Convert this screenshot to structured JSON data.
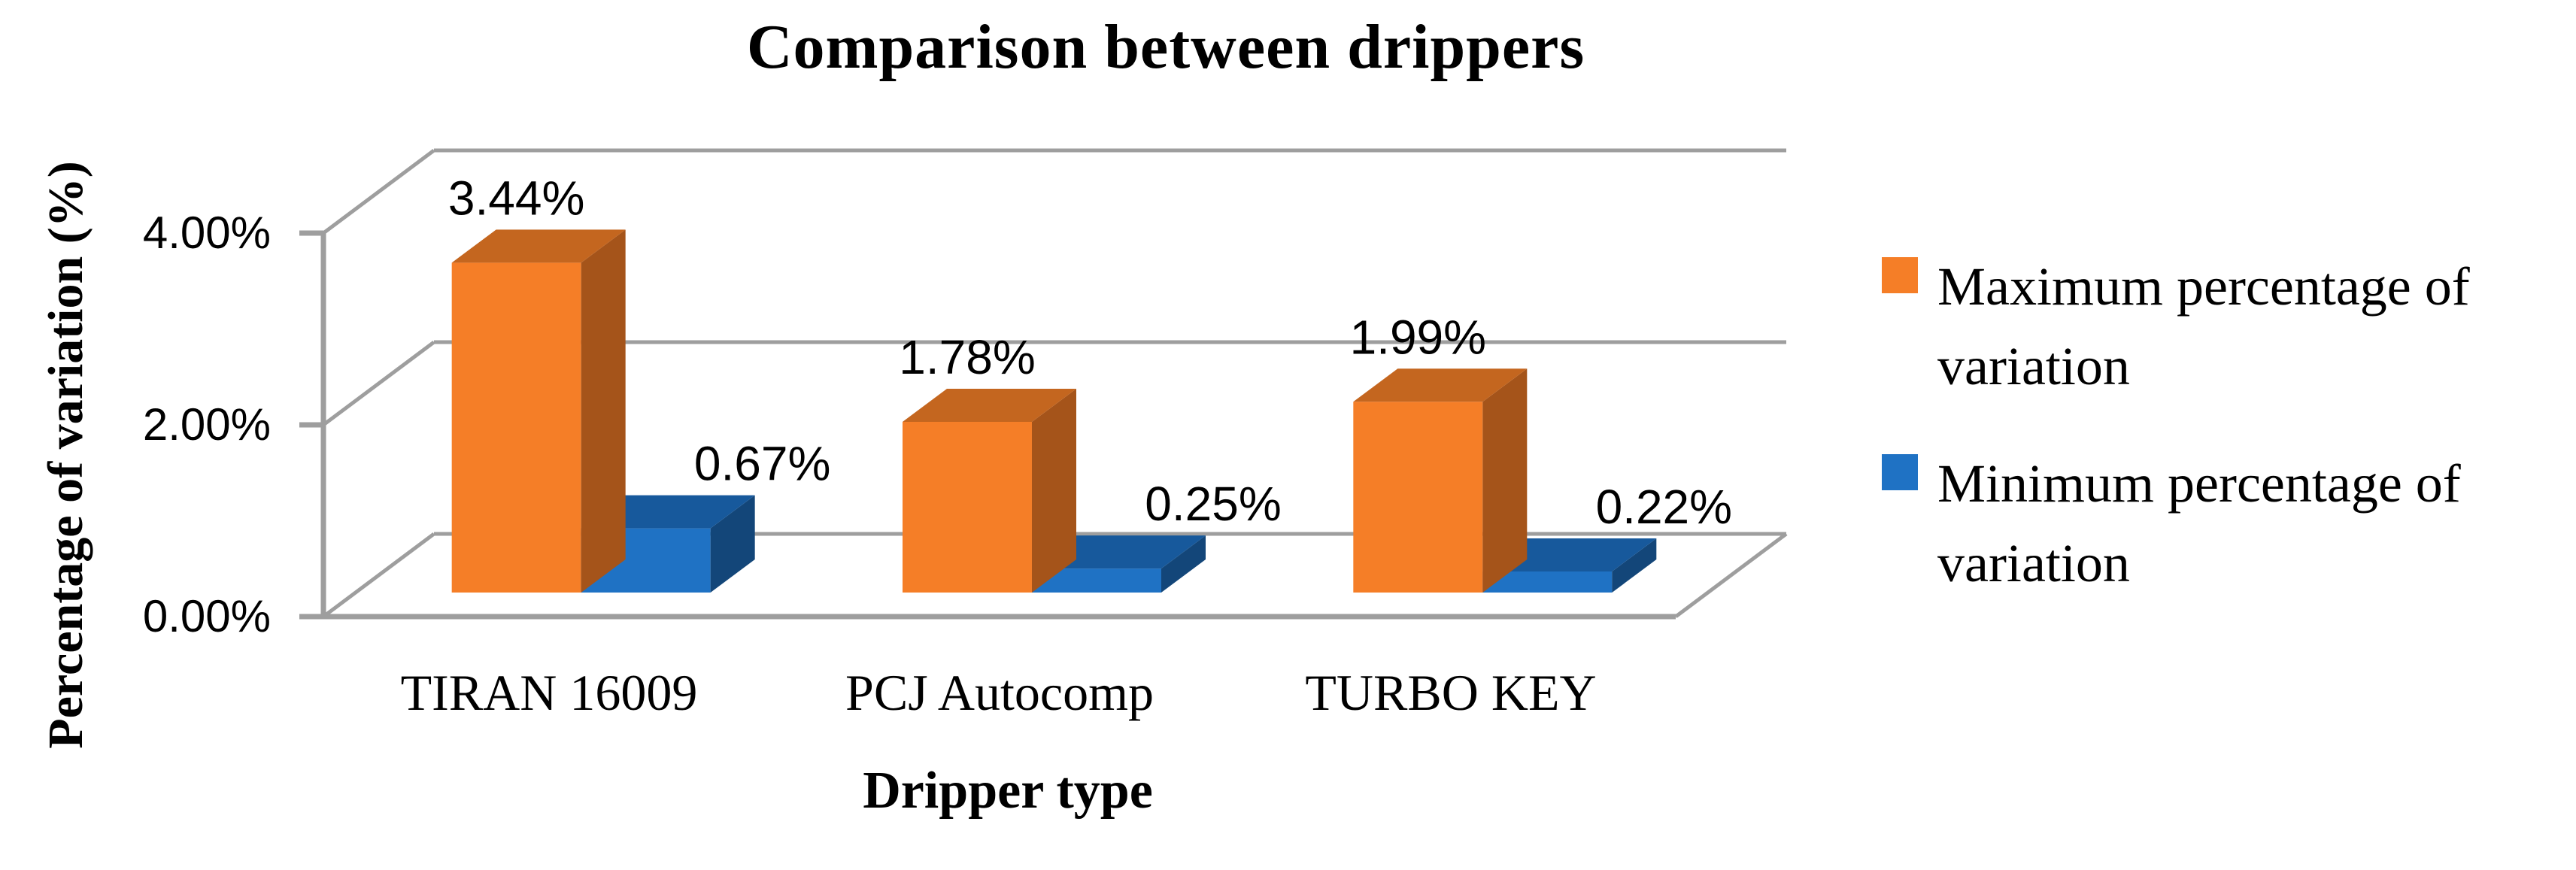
{
  "title": "Comparison between drippers",
  "chart_data": {
    "type": "bar",
    "style": "3d-column",
    "title": "Comparison between drippers",
    "xlabel": "Dripper type",
    "ylabel": "Percentage of variation (%)",
    "categories": [
      "TIRAN 16009",
      "PCJ Autocomp",
      "TURBO KEY"
    ],
    "series": [
      {
        "name": "Maximum percentage of variation",
        "values": [
          3.44,
          1.78,
          1.99
        ],
        "labels": [
          "3.44%",
          "1.78%",
          "1.99%"
        ],
        "colors": {
          "front": "#F57E27",
          "top": "#C4661F",
          "side": "#A5541A"
        }
      },
      {
        "name": "Minimum percentage of variation",
        "values": [
          0.67,
          0.25,
          0.22
        ],
        "labels": [
          "0.67%",
          "0.25%",
          "0.22%"
        ],
        "colors": {
          "front": "#1F72C4",
          "top": "#17599C",
          "side": "#134679"
        }
      }
    ],
    "yticks": [
      {
        "label": "0.00%",
        "value": 0
      },
      {
        "label": "2.00%",
        "value": 2
      },
      {
        "label": "4.00%",
        "value": 4
      }
    ],
    "ylim": [
      0,
      4
    ],
    "grid": true,
    "grid_color": "#9E9E9E",
    "text_color": "#000000",
    "background": "#FFFFFF",
    "legend_position": "right"
  }
}
